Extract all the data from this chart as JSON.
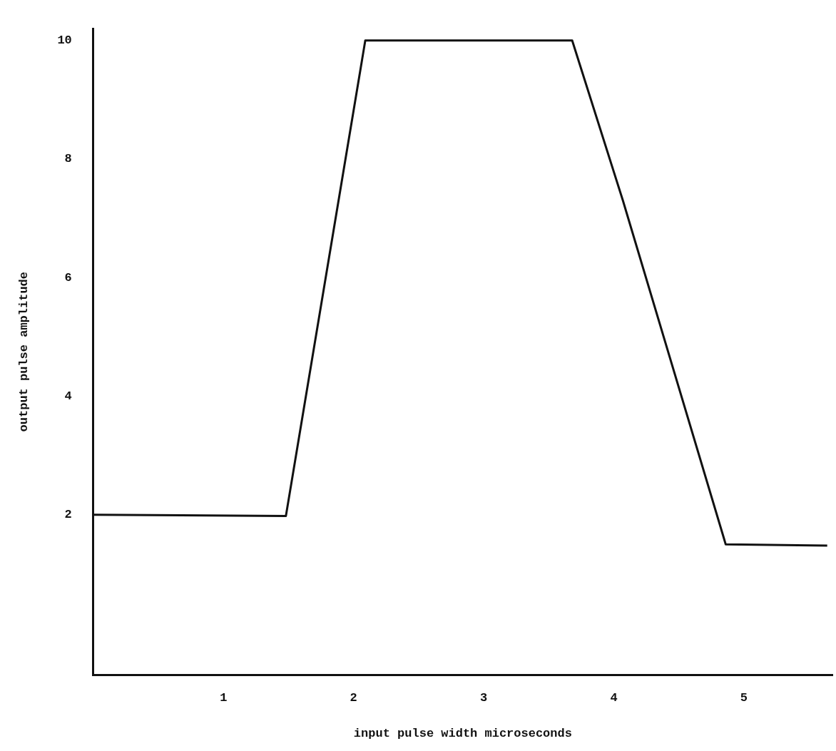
{
  "chart_data": {
    "type": "line",
    "xlabel": "input pulse width microseconds",
    "ylabel": "output pulse amplitude",
    "x": [
      0,
      1.48,
      2.09,
      3.68,
      4.07,
      4.86,
      5.64
    ],
    "series": [
      {
        "color": "#111111",
        "values": [
          2,
          1.98,
          10,
          10,
          7.3,
          1.5,
          1.48
        ]
      }
    ],
    "xlim": [
      0,
      5.68
    ],
    "xticks": [
      1,
      2,
      3,
      4,
      5
    ],
    "ylim": [
      -0.7,
      10.2
    ],
    "yticks": [
      2,
      4,
      6,
      8,
      10
    ],
    "grid": false,
    "legend": false,
    "marker": "none",
    "line_style": "solid"
  }
}
